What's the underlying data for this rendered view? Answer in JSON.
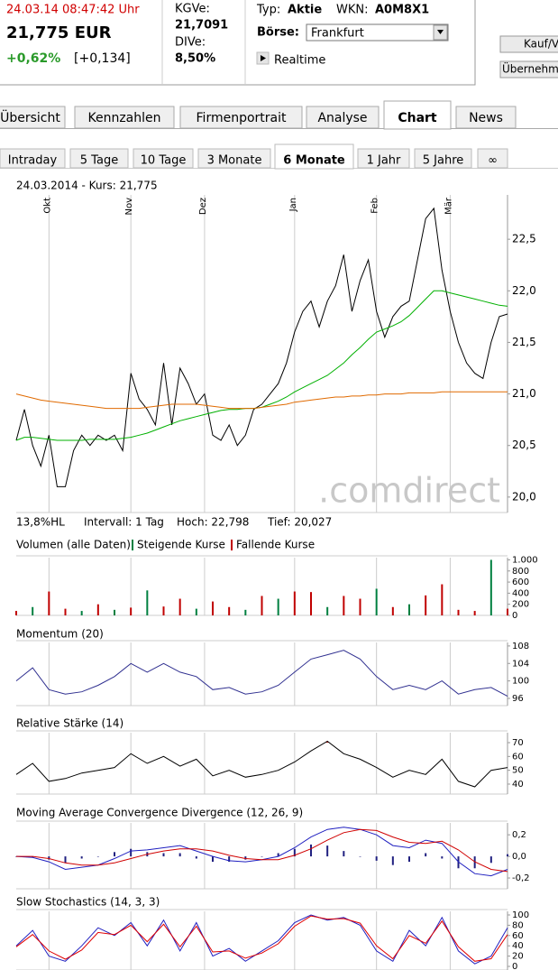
{
  "header": {
    "datetime": "24.03.14  08:47:42 Uhr",
    "price": "21,775 EUR",
    "change_pct": "+0,62%",
    "change_abs": "[+0,134]",
    "kgve_label": "KGVe:",
    "kgve": "21,7091",
    "dive_label": "DIVe:",
    "dive": "8,50%",
    "typ_label": "Typ:",
    "typ": "Aktie",
    "wkn_label": "WKN:",
    "wkn": "A0M8X1",
    "boerse_label": "Börse:",
    "boerse": "Frankfurt",
    "realtime": "Realtime",
    "buttons": [
      "Kauf/V",
      "Übernehm"
    ]
  },
  "tabs": {
    "items": [
      "Übersicht",
      "Kennzahlen",
      "Firmenportrait",
      "Analyse",
      "Chart",
      "News"
    ],
    "active": 4
  },
  "range_tabs": {
    "items": [
      "Intraday",
      "5 Tage",
      "10 Tage",
      "3 Monate",
      "6 Monate",
      "1 Jahr",
      "5 Jahre",
      "∞"
    ],
    "active": 4
  },
  "chart_data": [
    {
      "type": "line",
      "title": "24.03.2014  -  Kurs: 21,775",
      "annotations": [
        "13,8%HL",
        "Intervall: 1 Tag",
        "Hoch: 22,798",
        "Tief: 20,027"
      ],
      "watermark": ".comdirect",
      "categories": [
        null,
        null,
        null,
        null,
        "Okt",
        null,
        null,
        null,
        null,
        null,
        null,
        null,
        null,
        null,
        "Nov",
        null,
        null,
        null,
        null,
        null,
        null,
        null,
        null,
        "Dez",
        null,
        null,
        null,
        null,
        null,
        null,
        null,
        null,
        null,
        null,
        "Jan",
        null,
        null,
        null,
        null,
        null,
        null,
        null,
        null,
        null,
        "Feb",
        null,
        null,
        null,
        null,
        null,
        null,
        null,
        null,
        "Mär",
        null,
        null,
        null,
        null,
        null,
        null,
        null
      ],
      "series": [
        {
          "color": "#000000",
          "values": [
            20.55,
            20.85,
            20.5,
            20.3,
            20.6,
            20.1,
            20.1,
            20.45,
            20.6,
            20.5,
            20.6,
            20.55,
            20.6,
            20.45,
            21.2,
            20.95,
            20.85,
            20.7,
            21.3,
            20.7,
            21.25,
            21.1,
            20.9,
            21.0,
            20.6,
            20.55,
            20.7,
            20.5,
            20.6,
            20.85,
            20.9,
            21.0,
            21.1,
            21.3,
            21.6,
            21.8,
            21.9,
            21.65,
            21.9,
            22.05,
            22.35,
            21.8,
            22.1,
            22.3,
            21.8,
            21.55,
            21.75,
            21.85,
            21.9,
            22.3,
            22.7,
            22.8,
            22.2,
            21.8,
            21.5,
            21.3,
            21.2,
            21.15,
            21.5,
            21.75,
            21.775
          ]
        },
        {
          "color": "#00b000",
          "values": [
            20.55,
            20.58,
            20.58,
            20.57,
            20.56,
            20.55,
            20.55,
            20.55,
            20.55,
            20.56,
            20.56,
            20.56,
            20.56,
            20.57,
            20.58,
            20.6,
            20.62,
            20.65,
            20.68,
            20.71,
            20.74,
            20.76,
            20.78,
            20.8,
            20.82,
            20.84,
            20.85,
            20.85,
            20.86,
            20.86,
            20.87,
            20.9,
            20.93,
            20.97,
            21.02,
            21.06,
            21.1,
            21.14,
            21.18,
            21.24,
            21.3,
            21.38,
            21.45,
            21.53,
            21.6,
            21.63,
            21.66,
            21.7,
            21.76,
            21.84,
            21.92,
            22.0,
            22.0,
            21.98,
            21.96,
            21.94,
            21.92,
            21.9,
            21.88,
            21.86,
            21.85
          ]
        },
        {
          "color": "#e06a00",
          "values": [
            21.0,
            20.98,
            20.96,
            20.94,
            20.93,
            20.92,
            20.91,
            20.9,
            20.89,
            20.88,
            20.87,
            20.86,
            20.86,
            20.86,
            20.86,
            20.86,
            20.87,
            20.88,
            20.89,
            20.9,
            20.9,
            20.9,
            20.9,
            20.89,
            20.88,
            20.87,
            20.86,
            20.86,
            20.86,
            20.86,
            20.87,
            20.88,
            20.89,
            20.9,
            20.92,
            20.93,
            20.94,
            20.95,
            20.96,
            20.97,
            20.97,
            20.98,
            20.98,
            20.99,
            20.99,
            21.0,
            21.0,
            21.0,
            21.01,
            21.01,
            21.01,
            21.01,
            21.02,
            21.02,
            21.02,
            21.02,
            21.02,
            21.02,
            21.02,
            21.02,
            21.02
          ]
        }
      ],
      "ylim": [
        19.85,
        22.93
      ],
      "yticks": [
        {
          "value": 20.0,
          "label": "20,0"
        },
        {
          "value": 20.5,
          "label": "20,5"
        },
        {
          "value": 21.0,
          "label": "21,0"
        },
        {
          "value": 21.5,
          "label": "21,5"
        },
        {
          "value": 22.0,
          "label": "22,0"
        },
        {
          "value": 22.5,
          "label": "22,5"
        }
      ]
    },
    {
      "type": "bar",
      "title": "Volumen (alle Daten)",
      "series": [
        {
          "name": "Steigende Kurse",
          "color": "#008040",
          "values": [
            null,
            150,
            null,
            null,
            80,
            null,
            100,
            null,
            450,
            null,
            null,
            120,
            null,
            null,
            100,
            null,
            300,
            null,
            null,
            150,
            null,
            null,
            480,
            null,
            200,
            null,
            null,
            null,
            null,
            1000,
            null
          ]
        },
        {
          "name": "Fallende Kurse",
          "color": "#c00000",
          "values": [
            80,
            null,
            430,
            120,
            null,
            200,
            null,
            140,
            null,
            160,
            300,
            null,
            250,
            150,
            null,
            350,
            null,
            430,
            420,
            null,
            350,
            300,
            null,
            150,
            null,
            360,
            560,
            100,
            80,
            null,
            120
          ]
        }
      ],
      "ylim": [
        0,
        1040
      ],
      "yticks": [
        0,
        200,
        400,
        600,
        800,
        {
          "value": 1000,
          "label": "1.000"
        }
      ]
    },
    {
      "type": "line",
      "title": "Momentum (20)",
      "series": [
        {
          "color": "#303090",
          "values": [
            100,
            103,
            98,
            97,
            97.5,
            99,
            101,
            104,
            102,
            104,
            102,
            101,
            98,
            98.5,
            97,
            97.5,
            99,
            102,
            105,
            106,
            107,
            105,
            101,
            98,
            99,
            98,
            100,
            97,
            98,
            98.5,
            96.5
          ]
        }
      ],
      "ylim": [
        94.35,
        108.8
      ],
      "yticks": [
        96,
        100,
        104,
        108
      ]
    },
    {
      "type": "line",
      "title": "Relative Stärke (14)",
      "highlight_above": 70,
      "highlight_color": "#cc0000",
      "series": [
        {
          "color": "#000000",
          "values": [
            47,
            55,
            42,
            44,
            48,
            50,
            52,
            62,
            55,
            60,
            53,
            58,
            46,
            50,
            45,
            47,
            50,
            56,
            64,
            71,
            62,
            58,
            52,
            45,
            50,
            47,
            58,
            42,
            38,
            50,
            52
          ]
        }
      ],
      "ylim": [
        32.8,
        77.2
      ],
      "yticks": [
        40,
        50,
        60,
        70
      ]
    },
    {
      "type": "line",
      "title": "Moving Average Convergence Divergence (12, 26, 9)",
      "series": [
        {
          "type": "bar",
          "color": "#202080",
          "values": [
            0.0,
            -0.01,
            -0.03,
            -0.06,
            -0.02,
            0.0,
            0.04,
            0.07,
            0.04,
            0.03,
            0.03,
            -0.02,
            -0.05,
            -0.05,
            -0.03,
            0.0,
            0.03,
            0.07,
            0.11,
            0.1,
            0.05,
            0.0,
            -0.04,
            -0.08,
            -0.05,
            0.03,
            -0.02,
            -0.11,
            -0.11,
            -0.06,
            0.02
          ]
        },
        {
          "color": "#2020c0",
          "values": [
            0.0,
            -0.01,
            -0.05,
            -0.12,
            -0.1,
            -0.08,
            -0.02,
            0.05,
            0.06,
            0.08,
            0.1,
            0.05,
            0.0,
            -0.04,
            -0.05,
            -0.03,
            0.0,
            0.08,
            0.18,
            0.25,
            0.27,
            0.25,
            0.2,
            0.1,
            0.08,
            0.15,
            0.12,
            -0.05,
            -0.16,
            -0.18,
            -0.12
          ]
        },
        {
          "color": "#d00000",
          "values": [
            0.0,
            0.0,
            -0.02,
            -0.06,
            -0.08,
            -0.08,
            -0.06,
            -0.02,
            0.02,
            0.05,
            0.07,
            0.07,
            0.05,
            0.01,
            -0.02,
            -0.03,
            -0.03,
            0.01,
            0.07,
            0.15,
            0.22,
            0.25,
            0.24,
            0.18,
            0.13,
            0.12,
            0.14,
            0.06,
            -0.05,
            -0.12,
            -0.14
          ]
        }
      ],
      "ylim": [
        -0.3,
        0.31
      ],
      "yticks": [
        {
          "value": -0.2,
          "label": "-0,2"
        },
        {
          "value": 0,
          "label": "0,0"
        },
        {
          "value": 0.2,
          "label": "0,2"
        }
      ]
    },
    {
      "type": "line",
      "title": "Slow Stochastics (14, 3, 3)",
      "series": [
        {
          "color": "#2020c0",
          "values": [
            40,
            70,
            20,
            10,
            40,
            75,
            60,
            85,
            40,
            90,
            30,
            85,
            20,
            35,
            10,
            30,
            50,
            85,
            100,
            90,
            95,
            80,
            30,
            10,
            70,
            40,
            95,
            30,
            5,
            20,
            75
          ]
        },
        {
          "color": "#e00000",
          "values": [
            38,
            62,
            30,
            14,
            32,
            66,
            62,
            80,
            48,
            82,
            38,
            78,
            28,
            30,
            16,
            26,
            44,
            78,
            98,
            92,
            93,
            84,
            40,
            15,
            60,
            45,
            88,
            38,
            10,
            15,
            62
          ]
        }
      ],
      "ylim": [
        -7,
        107
      ],
      "yticks": [
        0,
        20,
        40,
        60,
        80,
        100
      ]
    }
  ]
}
